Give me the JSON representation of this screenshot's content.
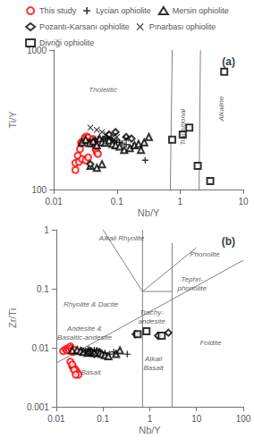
{
  "chart_data": [
    {
      "type": "scatter",
      "title": "(a)",
      "xlabel": "Nb/Y",
      "ylabel": "Ti/Y",
      "log": true,
      "grid": false,
      "legend": "top",
      "xlim": [
        0.01,
        10
      ],
      "ylim": [
        100,
        1000
      ],
      "xticks": [
        0.01,
        0.1,
        1,
        10
      ],
      "yticks": [
        100,
        1000
      ],
      "series": [
        {
          "name": "This study",
          "color": "red",
          "marker": "circle",
          "x": [
            0.022,
            0.024,
            0.026,
            0.027,
            0.028,
            0.03,
            0.031,
            0.033,
            0.035,
            0.037,
            0.038,
            0.04,
            0.042,
            0.044,
            0.046,
            0.048,
            0.05,
            0.022,
            0.025,
            0.028,
            0.032,
            0.035
          ],
          "y": [
            138,
            175,
            195,
            215,
            220,
            225,
            235,
            240,
            235,
            220,
            215,
            225,
            230,
            220,
            195,
            185,
            180,
            155,
            158,
            165,
            162,
            170
          ]
        },
        {
          "name": "Lycian ophiolite",
          "color": "black",
          "marker": "plus",
          "x": [
            0.038,
            0.045,
            0.05,
            0.055,
            0.06,
            0.065,
            0.07,
            0.075,
            0.08,
            0.085,
            0.09,
            0.1,
            0.11,
            0.12,
            0.14,
            0.18,
            0.28
          ],
          "y": [
            218,
            228,
            230,
            228,
            232,
            238,
            230,
            235,
            232,
            225,
            220,
            225,
            218,
            215,
            210,
            205,
            162
          ]
        },
        {
          "name": "Mersin ophiolite",
          "color": "black",
          "marker": "triangle",
          "x": [
            0.028,
            0.032,
            0.037,
            0.042,
            0.048,
            0.053,
            0.058,
            0.065,
            0.075,
            0.085,
            0.095,
            0.11,
            0.13,
            0.16,
            0.19,
            0.22,
            0.27,
            0.32,
            0.038,
            0.048,
            0.058,
            0.24
          ],
          "y": [
            218,
            228,
            215,
            222,
            208,
            232,
            218,
            216,
            225,
            212,
            208,
            203,
            192,
            198,
            208,
            212,
            218,
            238,
            148,
            143,
            152,
            192
          ]
        },
        {
          "name": "Pozantı-Karsanı ophiolite",
          "color": "black",
          "marker": "diamond",
          "x": [
            0.038,
            0.075,
            0.095,
            0.14,
            0.17
          ],
          "y": [
            152,
            248,
            258,
            238,
            232
          ]
        },
        {
          "name": "Pınarbası ophiolite",
          "color": "black",
          "marker": "cross",
          "x": [
            0.038,
            0.048,
            0.058,
            0.068,
            0.088,
            0.1,
            0.14
          ],
          "y": [
            278,
            268,
            258,
            248,
            242,
            238,
            232
          ]
        },
        {
          "name": "Divriği ophiolite",
          "color": "black",
          "marker": "square",
          "x": [
            0.75,
            1.1,
            1.4,
            5.0,
            1.9,
            3.0
          ],
          "y": [
            228,
            248,
            278,
            700,
            148,
            115
          ]
        }
      ],
      "lines": [
        {
          "color": "gray",
          "x": [
            0.7,
            0.75
          ],
          "y": [
            100,
            1000
          ]
        },
        {
          "color": "gray",
          "x": [
            2.0,
            2.1
          ],
          "y": [
            100,
            1000
          ]
        }
      ],
      "annotations": [
        {
          "text": "Tholeiitic",
          "x": 0.06,
          "y": 520
        },
        {
          "text": "Transitional",
          "x": 1.12,
          "y": 280,
          "orientation": "vertical"
        },
        {
          "text": "Alkaline",
          "x": 4.5,
          "y": 380,
          "orientation": "vertical"
        }
      ]
    },
    {
      "type": "scatter",
      "title": "(b)",
      "xlabel": "Nb/Y",
      "ylabel": "Zr/Ti",
      "log": true,
      "grid": false,
      "xlim": [
        0.01,
        100
      ],
      "ylim": [
        0.001,
        1
      ],
      "xticks": [
        0.01,
        0.1,
        1,
        10,
        100
      ],
      "yticks": [
        0.001,
        0.01,
        0.1,
        1
      ],
      "series": [
        {
          "name": "This study",
          "color": "red",
          "marker": "circle",
          "x": [
            0.014,
            0.016,
            0.017,
            0.018,
            0.019,
            0.02,
            0.021,
            0.022,
            0.023,
            0.024,
            0.022,
            0.024,
            0.026,
            0.028,
            0.03,
            0.02,
            0.022,
            0.024,
            0.026
          ],
          "y": [
            0.0088,
            0.0095,
            0.009,
            0.0098,
            0.0092,
            0.0105,
            0.0098,
            0.009,
            0.0085,
            0.0092,
            0.0048,
            0.0045,
            0.0042,
            0.0038,
            0.0035,
            0.0058,
            0.0052,
            0.0042,
            0.0035
          ]
        },
        {
          "name": "Lycian ophiolite",
          "color": "black",
          "marker": "plus",
          "x": [
            0.035,
            0.042,
            0.048,
            0.055,
            0.06,
            0.065,
            0.072,
            0.082,
            0.09,
            0.11,
            0.14,
            0.17,
            0.19,
            0.33
          ],
          "y": [
            0.0092,
            0.0088,
            0.0095,
            0.009,
            0.0085,
            0.0092,
            0.009,
            0.0088,
            0.0085,
            0.0082,
            0.0078,
            0.0085,
            0.0082,
            0.0078
          ]
        },
        {
          "name": "Mersin ophiolite",
          "color": "black",
          "marker": "triangle",
          "x": [
            0.022,
            0.028,
            0.033,
            0.038,
            0.047,
            0.052,
            0.057,
            0.065,
            0.075,
            0.085,
            0.095,
            0.11,
            0.13,
            0.19,
            0.23
          ],
          "y": [
            0.009,
            0.0092,
            0.0088,
            0.0085,
            0.0082,
            0.0088,
            0.0085,
            0.0082,
            0.0085,
            0.0082,
            0.0078,
            0.0075,
            0.0072,
            0.0078,
            0.009
          ]
        },
        {
          "name": "Pozantı-Karsanı ophiolite",
          "color": "black",
          "marker": "diamond",
          "x": [
            0.065,
            0.5,
            1.5,
            2.5
          ],
          "y": [
            0.0078,
            0.017,
            0.016,
            0.018
          ]
        },
        {
          "name": "Pınarbası ophiolite",
          "color": "black",
          "marker": "cross",
          "x": [
            0.038,
            0.048,
            0.057,
            0.065
          ],
          "y": [
            0.0085,
            0.0088,
            0.0082,
            0.0078
          ]
        },
        {
          "name": "Divriği ophiolite",
          "color": "black",
          "marker": "square",
          "x": [
            0.55,
            0.85,
            1.8
          ],
          "y": [
            0.017,
            0.019,
            0.016
          ]
        }
      ],
      "lines": [
        {
          "color": "gray",
          "x": [
            0.7,
            0.7
          ],
          "y": [
            0.001,
            1
          ]
        },
        {
          "color": "gray",
          "x": [
            0.1,
            0.7
          ],
          "y": [
            1.0,
            0.09
          ]
        },
        {
          "color": "gray",
          "x": [
            0.01,
            100
          ],
          "y": [
            0.0055,
            0.30389
          ]
        },
        {
          "color": "gray",
          "x": [
            3,
            3
          ],
          "y": [
            0.001,
            0.6
          ]
        },
        {
          "color": "gray",
          "x": [
            0.7,
            3.0
          ],
          "y": [
            0.09,
            0.09
          ]
        },
        {
          "color": "gray",
          "x": [
            0.7,
            10
          ],
          "y": [
            0.09,
            0.5
          ]
        }
      ],
      "annotations": [
        {
          "text": "Alkali Rhyolite",
          "x": 0.25,
          "y": 0.72
        },
        {
          "text": "Phonolite",
          "x": 15,
          "y": 0.38
        },
        {
          "text": "Rhyolite & Dacite",
          "x": 0.055,
          "y": 0.055
        },
        {
          "text": "Trachy-\nandesite",
          "x": 1.1,
          "y": 0.033
        },
        {
          "text": "Tephri-\nphonolite",
          "x": 8,
          "y": 0.12
        },
        {
          "text": "Andesite &\nBasaltic-andesite",
          "x": 0.04,
          "y": 0.018
        },
        {
          "text": "Basalt",
          "x": 0.055,
          "y": 0.0038
        },
        {
          "text": "Alkali\nBasalt",
          "x": 1.2,
          "y": 0.0055
        },
        {
          "text": "Foidite",
          "x": 20,
          "y": 0.012
        }
      ]
    }
  ]
}
